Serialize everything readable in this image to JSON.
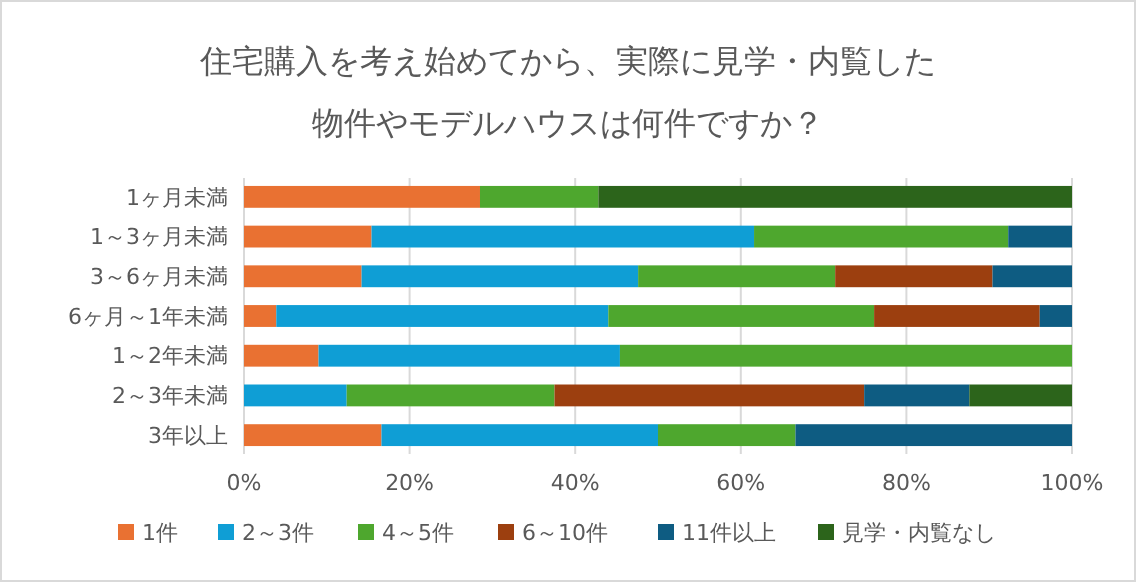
{
  "chart_data": {
    "type": "bar",
    "orientation": "horizontal",
    "stacked": true,
    "title": "住宅購入を考え始めてから、実際に見学・内覧した物件やモデルハウスは何件ですか？",
    "categories": [
      "1ヶ月未満",
      "1～3ヶ月未満",
      "3～6ヶ月未満",
      "6ヶ月～1年未満",
      "1～2年未満",
      "2～3年未満",
      "3年以上"
    ],
    "series": [
      {
        "name": "1件",
        "color": "#e97132",
        "values": [
          28.5,
          15.4,
          14.2,
          3.9,
          9.0,
          0,
          16.6
        ]
      },
      {
        "name": "2～3件",
        "color": "#0f9ed5",
        "values": [
          0,
          46.2,
          33.4,
          40.1,
          36.4,
          12.4,
          33.4
        ]
      },
      {
        "name": "4～5件",
        "color": "#4ea72e",
        "values": [
          14.3,
          30.7,
          23.8,
          32.1,
          54.6,
          25.1,
          16.6
        ]
      },
      {
        "name": "6～10件",
        "color": "#9c3f0f",
        "values": [
          0,
          0,
          19.0,
          20.0,
          0,
          37.4,
          0
        ]
      },
      {
        "name": "11件以上",
        "color": "#0e5c82",
        "values": [
          0,
          7.7,
          9.6,
          3.9,
          0,
          12.7,
          33.4
        ]
      },
      {
        "name": "見学・内覧なし",
        "color": "#2c641b",
        "values": [
          57.2,
          0,
          0,
          0,
          0,
          12.4,
          0
        ]
      }
    ],
    "xlim": [
      0,
      100
    ],
    "xticks": [
      {
        "value": 0,
        "label": "0%"
      },
      {
        "value": 20,
        "label": "20%"
      },
      {
        "value": 40,
        "label": "40%"
      },
      {
        "value": 60,
        "label": "60%"
      },
      {
        "value": 80,
        "label": "80%"
      },
      {
        "value": 100,
        "label": "100%"
      }
    ],
    "grid": "x",
    "legend": "bottom"
  }
}
